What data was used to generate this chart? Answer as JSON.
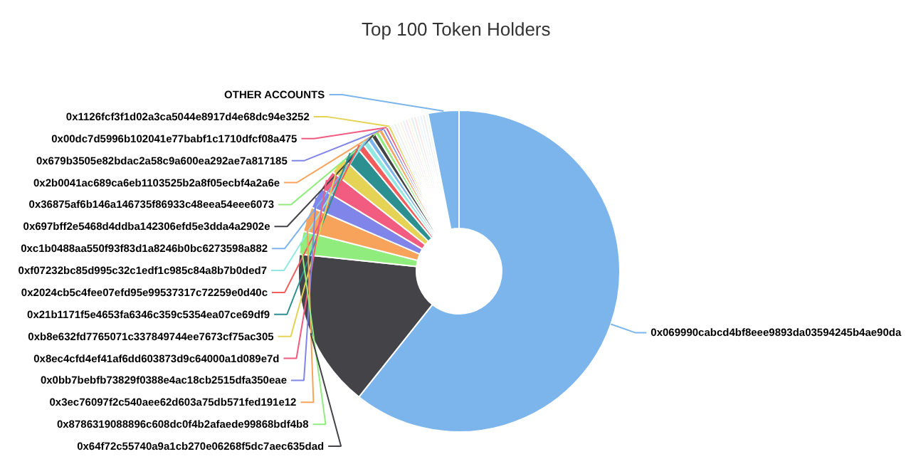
{
  "chart_data": {
    "type": "donut",
    "title": "Top 100 Token Holders",
    "categories": [
      "0x069990cabcd4bf8eee9893da03594245b4ae90da",
      "0x64f72c55740a9a1cb270e06268f5dc7aec635dad",
      "0x8786319088896c608dc0f4b2afaede99868bdf4b8",
      "0x3ec76097f2c540aee62d603a75db571fed191e12",
      "0x0bb7bebfb73829f0388e4ac18cb2515dfa350eae",
      "0x8ec4cfd4ef41af6dd603873d9c64000a1d089e7d",
      "0xb8e632fd7765071c337849744ee7673cf75ac305",
      "0x21b1171f5e4653fa6346c359c5354ea07ce69df9",
      "0x2024cb5c4fee07efd95e99537317c72259e0d40c",
      "0xf07232bc85d995c32c1edf1c985c84a8b7b0ded7",
      "0xc1b0488aa550f93f83d1a8246b0bc6273598a882",
      "0x697bff2e5468d4ddba142306efd5e3dda4a2902e",
      "0x36875af6b146a146735f86933c48eea54eee6073",
      "0x2b0041ac689ca6eb1103525b2a8f05ecbf4a2a6e",
      "0x679b3505e82bdac2a58c9a600ea292ae7a817185",
      "0x00dc7d5996b102041e77babf1c1710dfcf08a475",
      "0x1126fcf3f1d02a3ca5044e8917d4e68dc94e3252",
      null,
      null,
      null,
      null,
      null,
      null,
      null,
      null,
      null,
      null,
      null,
      null,
      null,
      "OTHER ACCOUNTS"
    ],
    "values": [
      60.7,
      16,
      2.3,
      2.5,
      2.1,
      2.0,
      1.7,
      1.7,
      0.7,
      0.6,
      0.5,
      0.5,
      0.4,
      0.4,
      0.3,
      0.3,
      0.3,
      0.3,
      0.3,
      0.3,
      0.3,
      0.3,
      0.3,
      0.3,
      0.3,
      0.3,
      0.3,
      0.3,
      0.3,
      0.3,
      3.1
    ],
    "colors": [
      "#7cb5ec",
      "#434348",
      "#90ed7d",
      "#f7a35c",
      "#8085e9",
      "#f15c80",
      "#e4d354",
      "#2b908f",
      "#f45b5b",
      "#91e8e1",
      "#7cb5ec",
      "#434348",
      "#90ed7d",
      "#f7a35c",
      "#8085e9",
      "#f15c80",
      "#e4d354",
      "#eaf4fb",
      "#ececec",
      "#eefbec",
      "#fdf1e6",
      "#ececfb",
      "#fde6ec",
      "#faf7e0",
      "#e0f0ef",
      "#fde2e2",
      "#eafaf8",
      "#eaf4fb",
      "#ececec",
      "#eefbec",
      "#7cb5ec"
    ]
  }
}
